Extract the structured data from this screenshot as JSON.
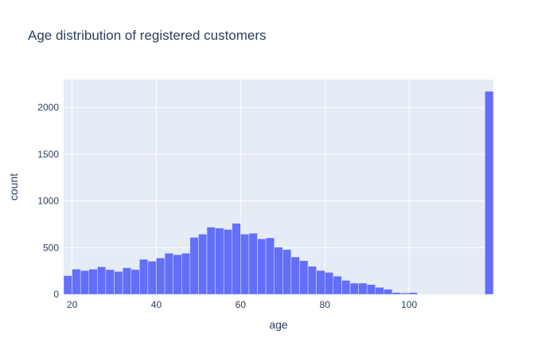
{
  "chart_data": {
    "type": "bar",
    "title": "Age distribution of registered customers",
    "xlabel": "age",
    "ylabel": "count",
    "bin_width": 2,
    "bin_starts": [
      18,
      20,
      22,
      24,
      26,
      28,
      30,
      32,
      34,
      36,
      38,
      40,
      42,
      44,
      46,
      48,
      50,
      52,
      54,
      56,
      58,
      60,
      62,
      64,
      66,
      68,
      70,
      72,
      74,
      76,
      78,
      80,
      82,
      84,
      86,
      88,
      90,
      92,
      94,
      96,
      98,
      100,
      102,
      104,
      106,
      108,
      110,
      112,
      114,
      116,
      118
    ],
    "values": [
      200,
      270,
      255,
      270,
      295,
      265,
      245,
      285,
      265,
      375,
      355,
      390,
      440,
      425,
      440,
      610,
      645,
      720,
      710,
      695,
      760,
      645,
      655,
      595,
      605,
      505,
      480,
      400,
      360,
      300,
      255,
      235,
      195,
      150,
      120,
      120,
      105,
      75,
      55,
      20,
      15,
      20,
      0,
      0,
      0,
      0,
      0,
      0,
      0,
      0,
      2175
    ],
    "xlim": [
      18,
      120
    ],
    "ylim": [
      0,
      2300
    ],
    "x_ticks": [
      20,
      40,
      60,
      80,
      100
    ],
    "y_ticks": [
      0,
      500,
      1000,
      1500,
      2000
    ],
    "grid": true,
    "colors": {
      "bar": "#636efa",
      "plot_bg": "#e5ecf6",
      "grid": "#ffffff",
      "text": "#2a3f5f"
    }
  }
}
